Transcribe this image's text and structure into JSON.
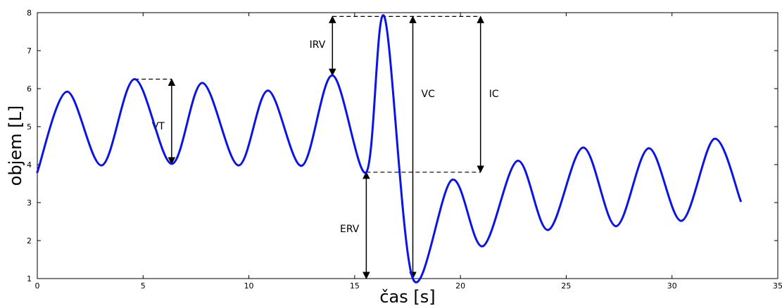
{
  "chart_data": {
    "type": "line",
    "xlabel": "čas [s]",
    "ylabel": "objem [L]",
    "xlim": [
      0,
      35
    ],
    "ylim": [
      1,
      8
    ],
    "xticks": [
      0,
      5,
      10,
      15,
      20,
      25,
      30,
      35
    ],
    "yticks": [
      1,
      2,
      3,
      4,
      5,
      6,
      7,
      8
    ],
    "grid": false,
    "line_color": "#0a14e6",
    "series": [
      {
        "points": [
          [
            0,
            3.8
          ],
          [
            1.4,
            5.92
          ],
          [
            3.05,
            3.98
          ],
          [
            4.6,
            6.25
          ],
          [
            6.35,
            4.02
          ],
          [
            7.8,
            6.15
          ],
          [
            9.5,
            3.98
          ],
          [
            10.9,
            5.95
          ],
          [
            12.5,
            3.97
          ],
          [
            13.95,
            6.35
          ],
          [
            15.55,
            3.8
          ],
          [
            16.4,
            7.9
          ],
          [
            17.75,
            1.0
          ],
          [
            19.6,
            3.6
          ],
          [
            21.05,
            1.85
          ],
          [
            22.7,
            4.1
          ],
          [
            24.15,
            2.28
          ],
          [
            25.8,
            4.45
          ],
          [
            27.35,
            2.38
          ],
          [
            28.9,
            4.43
          ],
          [
            30.45,
            2.52
          ],
          [
            32.0,
            4.68
          ],
          [
            33.25,
            3.04
          ]
        ]
      }
    ],
    "annotations": [
      {
        "label": "VT",
        "x": 6.35,
        "y_from": 4.02,
        "y_to": 6.25,
        "ref_y": 6.25,
        "ref_x_from": 4.6
      },
      {
        "label": "IRV",
        "x": 13.95,
        "y_from": 6.35,
        "y_to": 7.9,
        "ref_y": 7.9,
        "ref_x_from": 13.95
      },
      {
        "label": "VC",
        "x": 17.75,
        "y_from": 1.0,
        "y_to": 7.9
      },
      {
        "label": "IC",
        "x": 20.95,
        "y_from": 3.8,
        "y_to": 7.9,
        "ref_y": 3.8,
        "ref_x_from": 15.55
      },
      {
        "label": "ERV",
        "x": 15.55,
        "y_from": 1.0,
        "y_to": 3.8
      }
    ]
  }
}
